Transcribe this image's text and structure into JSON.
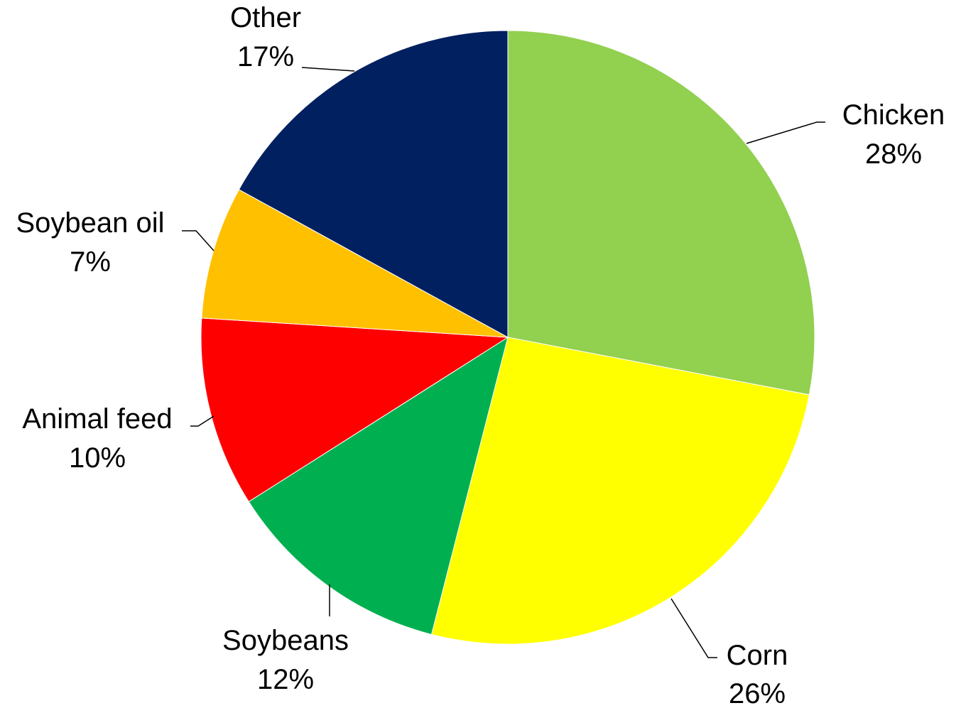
{
  "chart_data": {
    "type": "pie",
    "title": "",
    "start_angle_deg": 0,
    "direction": "clockwise",
    "slices": [
      {
        "name": "Chicken",
        "value": 28,
        "label": "28%",
        "color": "#92d050"
      },
      {
        "name": "Corn",
        "value": 26,
        "label": "26%",
        "color": "#ffff00"
      },
      {
        "name": "Soybeans",
        "value": 12,
        "label": "12%",
        "color": "#00b050"
      },
      {
        "name": "Animal feed",
        "value": 10,
        "label": "10%",
        "color": "#ff0000"
      },
      {
        "name": "Soybean oil",
        "value": 7,
        "label": "7%",
        "color": "#ffc000"
      },
      {
        "name": "Other",
        "value": 17,
        "label": "17%",
        "color": "#002060"
      }
    ],
    "legend": "none",
    "data_labels": "outside with leader lines"
  }
}
